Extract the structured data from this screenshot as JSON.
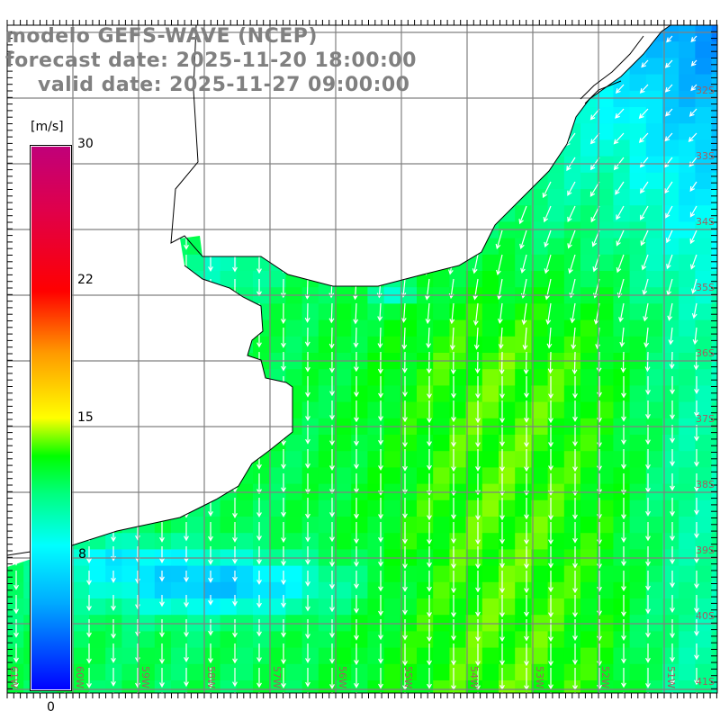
{
  "title": {
    "model": "modelo GEFS-WAVE (NCEP)",
    "forecast": "forecast date: 2025-11-20 18:00:00",
    "valid": "valid date: 2025-11-27 09:00:00"
  },
  "colorbar": {
    "unit": "[m/s]",
    "labels": [
      "30",
      "22",
      "15",
      "8",
      "0"
    ],
    "min": 0,
    "max": 30
  },
  "lat_labels": [
    "32S",
    "33S",
    "34S",
    "35S",
    "36S",
    "37S",
    "38S",
    "39S",
    "40S",
    "41S"
  ],
  "lon_labels": [
    "61W",
    "60W",
    "59W",
    "58W",
    "57W",
    "56W",
    "55W",
    "54W",
    "53W",
    "52W",
    "51W"
  ],
  "colors": {
    "land": "#ffffff",
    "grid": "#808080",
    "arrows": "#ffffff",
    "coast": "#000000"
  }
}
